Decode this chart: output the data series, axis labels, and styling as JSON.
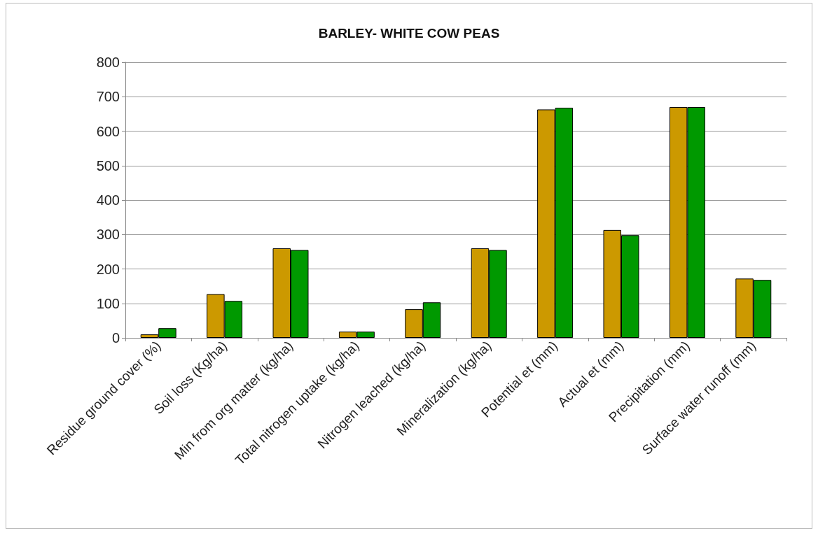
{
  "chart_data": {
    "type": "bar",
    "title": "BARLEY- WHITE COW PEAS",
    "categories": [
      "Residue ground cover (%)",
      "Soil loss (Kg/ha)",
      "Min from org matter (kg/ha)",
      "Total nitrogen uptake (kg/ha)",
      "Nitrogen leached (kg/ha)",
      "Mineralization (kg/ha)",
      "Potential et (mm)",
      "Actual et (mm)",
      "Precipitation (mm)",
      "Surface water runoff (mm)"
    ],
    "series": [
      {
        "color": "#cc9900",
        "values": [
          10,
          127,
          260,
          18,
          83,
          260,
          663,
          313,
          670,
          172
        ]
      },
      {
        "color": "#009900",
        "values": [
          28,
          107,
          255,
          18,
          103,
          255,
          668,
          298,
          670,
          168
        ]
      }
    ],
    "ylim": [
      0,
      800
    ],
    "yticks": [
      0,
      100,
      200,
      300,
      400,
      500,
      600,
      700,
      800
    ],
    "grid": "y"
  }
}
